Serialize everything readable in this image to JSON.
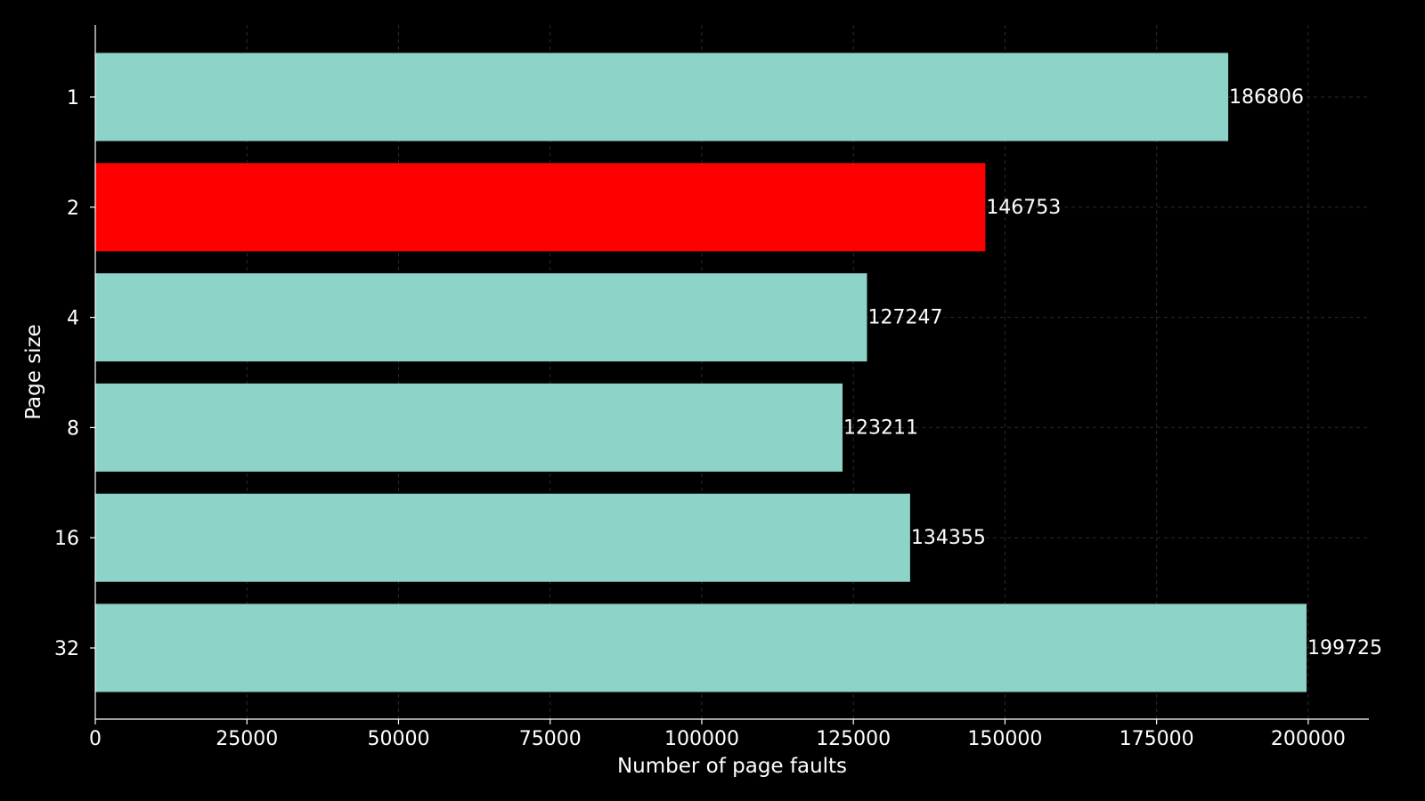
{
  "chart_data": {
    "type": "bar",
    "orientation": "horizontal",
    "title": "",
    "xlabel": "Number of page faults",
    "ylabel": "Page size",
    "categories": [
      "1",
      "2",
      "4",
      "8",
      "16",
      "32"
    ],
    "values": [
      186806,
      146753,
      127247,
      123211,
      134355,
      199725
    ],
    "data_labels": [
      "186806",
      "146753",
      "127247",
      "123211",
      "134355",
      "199725"
    ],
    "xlim": [
      0,
      210000
    ],
    "xticks": [
      0,
      25000,
      50000,
      75000,
      100000,
      125000,
      150000,
      175000,
      200000
    ],
    "xtick_labels": [
      "0",
      "25000",
      "50000",
      "75000",
      "100000",
      "125000",
      "150000",
      "175000",
      "200000"
    ],
    "grid": true,
    "highlight_category": "2",
    "colors": {
      "background": "#000000",
      "bar": "#8dd3c7",
      "highlight_bar": "#ff0000",
      "text": "#ffffff",
      "grid": "#2a2a2a"
    }
  }
}
